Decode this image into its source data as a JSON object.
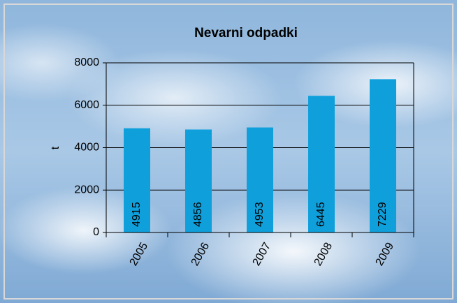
{
  "chart_data": {
    "type": "bar",
    "title": "Nevarni odpadki",
    "y_label": "t",
    "categories": [
      "2005",
      "2006",
      "2007",
      "2008",
      "2009"
    ],
    "values": [
      4915,
      4856,
      4953,
      6445,
      7229
    ],
    "color": "#0fa0dc",
    "ylim": [
      0,
      8000
    ],
    "yticks": [
      0,
      2000,
      4000,
      6000,
      8000
    ],
    "grid": true
  }
}
